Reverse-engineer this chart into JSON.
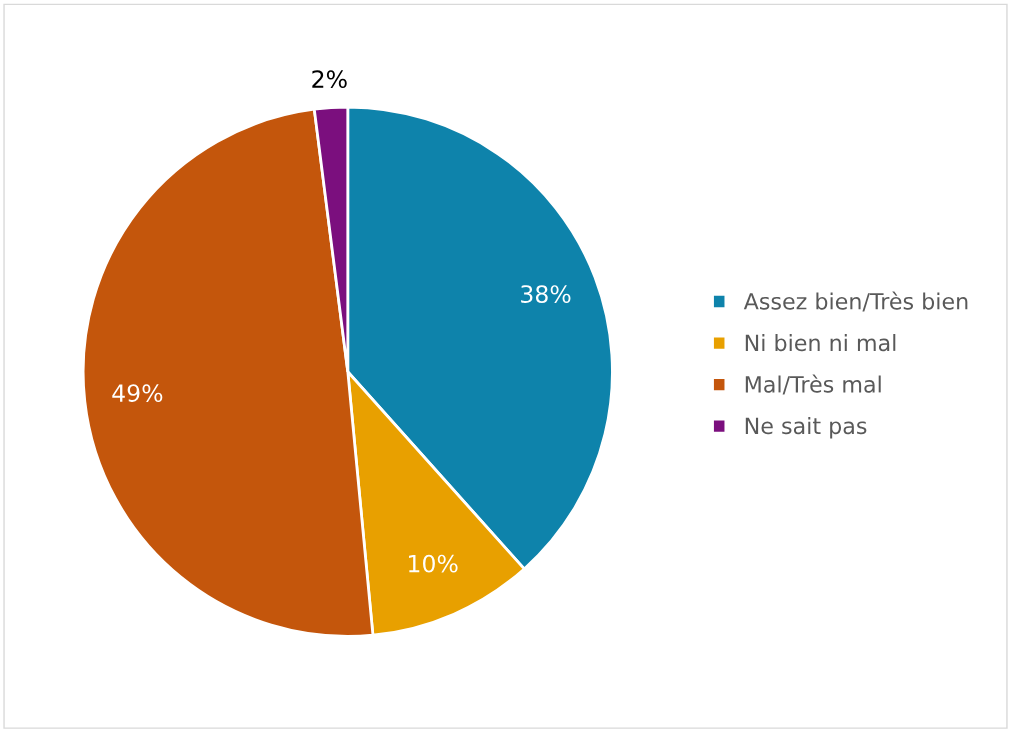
{
  "chart_data": {
    "type": "pie",
    "categories": [
      "Assez bien/Très bien",
      "Ni bien ni mal",
      "Mal/Très mal",
      "Ne sait pas"
    ],
    "values": [
      38,
      10,
      49,
      2
    ],
    "colors": [
      "#0e83ab",
      "#e8a000",
      "#c4560c",
      "#7b0f7e"
    ],
    "value_labels": [
      "38%",
      "10%",
      "49%",
      "2%"
    ],
    "legend": "right"
  }
}
